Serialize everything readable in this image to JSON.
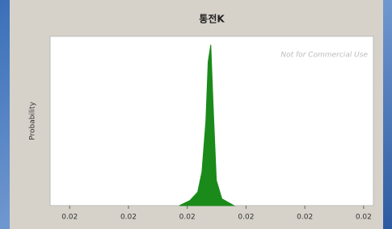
{
  "chart_data": {
    "type": "area",
    "title": "통전K",
    "y_label": "Probability",
    "watermark": "Not for Commercial Use",
    "color": "#1a8a1a",
    "x": [
      0.01886,
      0.01918,
      0.01942,
      0.01955,
      0.01967,
      0.01974,
      0.01982,
      0.01989,
      0.01999,
      0.02016,
      0.02053
    ],
    "values": [
      0,
      0.03,
      0.08,
      0.2,
      0.5,
      0.85,
      0.95,
      0.6,
      0.15,
      0.04,
      0
    ],
    "xlim": [
      0.0149,
      0.0248
    ],
    "ylim": [
      0,
      1
    ],
    "xticks": [
      {
        "value": 0.0155,
        "label": "0.02"
      },
      {
        "value": 0.0173,
        "label": "0.02"
      },
      {
        "value": 0.0191,
        "label": "0.02"
      },
      {
        "value": 0.0209,
        "label": "0.02"
      },
      {
        "value": 0.0227,
        "label": "0.02"
      },
      {
        "value": 0.0245,
        "label": "0.02"
      }
    ]
  }
}
